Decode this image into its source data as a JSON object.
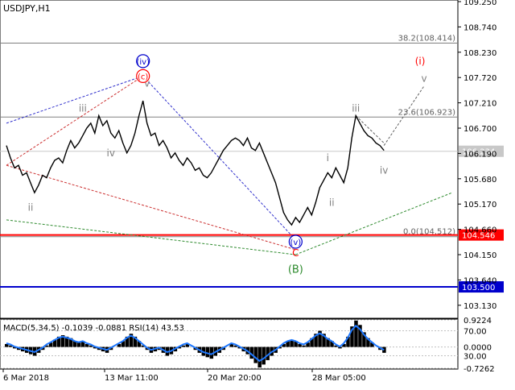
{
  "chart_data": {
    "type": "line",
    "title": "USDJPY,H1",
    "price_axis": {
      "ticks": [
        "109.250",
        "108.740",
        "108.230",
        "107.720",
        "107.210",
        "106.700",
        "106.190",
        "105.680",
        "105.170",
        "104.660",
        "104.150",
        "103.640",
        "103.130"
      ],
      "ylim": [
        102.9,
        109.25
      ]
    },
    "time_axis": {
      "labels": [
        "6 Mar 2018",
        "13 Mar 11:00",
        "20 Mar 20:00",
        "28 Mar 05:00"
      ]
    },
    "series": [
      {
        "type": "line",
        "color": "#000000",
        "values": [
          106.35,
          106.1,
          105.9,
          105.95,
          105.75,
          105.8,
          105.6,
          105.4,
          105.55,
          105.75,
          105.7,
          105.9,
          106.05,
          106.1,
          106.0,
          106.25,
          106.45,
          106.3,
          106.4,
          106.55,
          106.7,
          106.8,
          106.6,
          106.95,
          106.75,
          106.85,
          106.6,
          106.5,
          106.65,
          106.4,
          106.2,
          106.35,
          106.6,
          106.95,
          107.25,
          106.8,
          106.55,
          106.6,
          106.35,
          106.45,
          106.3,
          106.1,
          106.2,
          106.05,
          105.95,
          106.1,
          106.0,
          105.85,
          105.9,
          105.75,
          105.7,
          105.8,
          105.95,
          106.1,
          106.25,
          106.35,
          106.45,
          106.5,
          106.45,
          106.35,
          106.5,
          106.3,
          106.25,
          106.4,
          106.2,
          106.0,
          105.8,
          105.6,
          105.3,
          105.0,
          104.85,
          104.75,
          104.9,
          104.8,
          104.95,
          105.1,
          104.95,
          105.2,
          105.5,
          105.65,
          105.8,
          105.7,
          105.9,
          105.75,
          105.6,
          105.9,
          106.5,
          106.95,
          106.8,
          106.65,
          106.55,
          106.5,
          106.4,
          106.35,
          106.25
        ]
      }
    ],
    "levels": [
      {
        "label": "38.2(108.414)",
        "value": 108.414
      },
      {
        "label": "23.6(106.923)",
        "value": 106.923
      },
      {
        "label": "0.0(104.512)",
        "value": 104.512
      }
    ],
    "price_labels": [
      {
        "value": 106.234,
        "text": "106.234",
        "color": "#c8c8c8",
        "text_color": "#ffffff"
      },
      {
        "value": 104.546,
        "text": "104.546",
        "color": "#ff0000",
        "text_color": "#ffffff"
      },
      {
        "value": 103.5,
        "text": "103.500",
        "color": "#0000cc",
        "text_color": "#ffffff"
      }
    ],
    "colors": {
      "red_line": "#ff0000",
      "blue_line": "#0000cc",
      "green_label": "#2e8b2e",
      "red_label": "#ff0000",
      "gray_wave": "#808080"
    },
    "wave_labels": [
      {
        "text": "ii",
        "style": "gray",
        "i": 6,
        "v": 105.1
      },
      {
        "text": "iii",
        "style": "gray",
        "i": 19,
        "v": 107.1
      },
      {
        "text": "iv",
        "style": "gray",
        "i": 26,
        "v": 106.2
      },
      {
        "text": "v",
        "style": "gray",
        "i": 35,
        "v": 107.6
      },
      {
        "text": "(c)",
        "style": "red-circle",
        "i": 34,
        "v": 107.75
      },
      {
        "text": "(iv)",
        "style": "blue-circle",
        "i": 34,
        "v": 108.05
      },
      {
        "text": "(v)",
        "style": "blue-circle",
        "i": 72,
        "v": 104.41
      },
      {
        "text": "C",
        "style": "red-plain",
        "i": 72,
        "v": 104.18
      },
      {
        "text": "(B)",
        "style": "green",
        "i": 72,
        "v": 103.85
      },
      {
        "text": "i",
        "style": "gray",
        "i": 80,
        "v": 106.1
      },
      {
        "text": "ii",
        "style": "gray",
        "i": 81,
        "v": 105.2
      },
      {
        "text": "iii",
        "style": "gray",
        "i": 87,
        "v": 107.1
      },
      {
        "text": "iv",
        "style": "gray",
        "i": 94,
        "v": 105.85
      },
      {
        "text": "(i)",
        "style": "red-plain",
        "i": 103,
        "v": 108.05
      },
      {
        "text": "v",
        "style": "gray",
        "i": 104,
        "v": 107.7
      }
    ],
    "macd_panel": {
      "label": "MACD(5,34,5) -0.1039 -0.0881 RSI(14) 43.53",
      "ticks": [
        "0.9224",
        "70.00",
        "0.0000",
        "30.00",
        "-0.7262"
      ],
      "values": [
        0.1,
        0.05,
        -0.05,
        -0.1,
        -0.15,
        -0.2,
        -0.25,
        -0.3,
        -0.2,
        -0.1,
        0.05,
        0.15,
        0.25,
        0.35,
        0.4,
        0.35,
        0.3,
        0.2,
        0.15,
        0.2,
        0.1,
        0.05,
        -0.05,
        -0.1,
        -0.15,
        -0.2,
        -0.1,
        0.0,
        0.1,
        0.2,
        0.35,
        0.45,
        0.35,
        0.2,
        0.05,
        -0.1,
        -0.2,
        -0.15,
        -0.1,
        -0.2,
        -0.3,
        -0.25,
        -0.15,
        -0.05,
        0.05,
        0.1,
        0.0,
        -0.1,
        -0.2,
        -0.3,
        -0.35,
        -0.4,
        -0.3,
        -0.2,
        -0.1,
        0.0,
        0.1,
        0.05,
        -0.05,
        -0.15,
        -0.25,
        -0.4,
        -0.55,
        -0.7,
        -0.6,
        -0.45,
        -0.3,
        -0.2,
        -0.05,
        0.1,
        0.2,
        0.25,
        0.2,
        0.1,
        0.05,
        0.15,
        0.3,
        0.45,
        0.55,
        0.45,
        0.3,
        0.2,
        0.05,
        -0.05,
        0.1,
        0.35,
        0.7,
        0.9,
        0.75,
        0.5,
        0.3,
        0.15,
        0.0,
        -0.1,
        -0.2
      ]
    }
  }
}
